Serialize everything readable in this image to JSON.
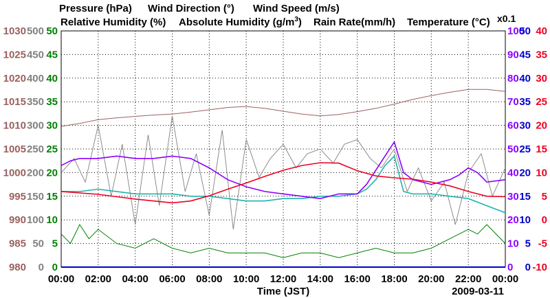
{
  "chart_data": {
    "type": "line",
    "date": "2009-03-11",
    "xlabel": "Time (JST)",
    "x_ticks": [
      "00:00",
      "02:00",
      "04:00",
      "06:00",
      "08:00",
      "10:00",
      "12:00",
      "14:00",
      "16:00",
      "18:00",
      "20:00",
      "22:00",
      "00:00"
    ],
    "x_range_hours": [
      0,
      24
    ],
    "legend": {
      "row1": [
        {
          "key": "pressure",
          "label": "Pressure (hPa)"
        },
        {
          "key": "wind_dir",
          "label": "Wind Direction (°)"
        },
        {
          "key": "wind_speed",
          "label": "Wind Speed (m/s)"
        }
      ],
      "row2": [
        {
          "key": "rel_hum",
          "label": "Relative Humidity (%)"
        },
        {
          "key": "abs_hum",
          "label": "Absolute Humidity (g/m"
        },
        {
          "key": "rain",
          "label": "Rain Rate(mm/h)"
        },
        {
          "key": "temp",
          "label": "Temperature (°C)"
        }
      ],
      "abs_hum_unit_tail": ")",
      "abs_hum_superscript": "3",
      "abs_hum_scale_note": "x0.1"
    },
    "colors": {
      "pressure": "#9b6060",
      "wind_dir": "#808080",
      "wind_speed": "#008000",
      "rel_hum": "#8b00ff",
      "abs_hum": "#20b2aa",
      "rain": "#0000cc",
      "temp": "#ee0022"
    },
    "axes": {
      "pressure": {
        "range": [
          980,
          1030
        ],
        "ticks": [
          "1030",
          "1025",
          "1020",
          "1015",
          "1010",
          "1005",
          "1000",
          "995",
          "990",
          "985",
          "980"
        ]
      },
      "wind_dir": {
        "range": [
          0,
          500
        ],
        "ticks": [
          "500",
          "450",
          "400",
          "350",
          "300",
          "250",
          "200",
          "150",
          "100",
          "50",
          "0"
        ]
      },
      "wind_speed": {
        "range": [
          0,
          50
        ],
        "ticks": [
          "50",
          "45",
          "40",
          "35",
          "30",
          "25",
          "20",
          "15",
          "10",
          "5",
          "0"
        ]
      },
      "rel_hum": {
        "range": [
          0,
          100
        ],
        "ticks": [
          "100",
          "90",
          "80",
          "70",
          "60",
          "50",
          "40",
          "30",
          "20",
          "10",
          "0"
        ]
      },
      "rain": {
        "range": [
          0,
          50
        ],
        "ticks": [
          "50",
          "45",
          "40",
          "35",
          "30",
          "25",
          "20",
          "15",
          "10",
          "5",
          "0"
        ]
      },
      "temp": {
        "range": [
          -10,
          40
        ],
        "ticks": [
          "40",
          "35",
          "30",
          "25",
          "20",
          "15",
          "10",
          "5",
          "0",
          "-5",
          "-10"
        ]
      }
    },
    "series": [
      {
        "name": "Pressure (hPa)",
        "key": "pressure",
        "axis": "pressure",
        "x": [
          0,
          1,
          2,
          3,
          4,
          5,
          6,
          7,
          8,
          9,
          10,
          11,
          12,
          13,
          14,
          15,
          16,
          17,
          18,
          19,
          20,
          21,
          22,
          23,
          24
        ],
        "y": [
          1009.8,
          1010.4,
          1011.2,
          1011.6,
          1011.9,
          1012.2,
          1012.4,
          1012.8,
          1013.3,
          1013.8,
          1014.0,
          1013.6,
          1013.0,
          1012.4,
          1012.0,
          1012.3,
          1012.9,
          1013.6,
          1014.5,
          1015.5,
          1016.3,
          1017.0,
          1017.6,
          1017.6,
          1017.2
        ]
      },
      {
        "name": "Relative Humidity (%)",
        "key": "rel_hum",
        "axis": "rel_hum",
        "x": [
          0,
          0.5,
          1,
          2,
          3,
          4,
          5,
          6,
          7,
          8,
          9,
          10,
          11,
          12,
          13,
          14,
          15,
          15.5,
          16,
          16.5,
          17,
          17.5,
          18,
          18.5,
          19,
          20,
          21,
          21.5,
          22,
          22.5,
          23,
          24
        ],
        "y": [
          43,
          45,
          46,
          46,
          47,
          46,
          46,
          47,
          46,
          42,
          37,
          34,
          32,
          31,
          30,
          29,
          31,
          31,
          31,
          35,
          41,
          47,
          53,
          40,
          37,
          35,
          37,
          39,
          42,
          40,
          36,
          37
        ]
      },
      {
        "name": "Absolute Humidity x0.1",
        "key": "abs_hum",
        "axis": "rel_hum",
        "x": [
          0,
          1,
          2,
          3,
          4,
          5,
          6,
          7,
          8,
          9,
          10,
          11,
          12,
          13,
          14,
          15,
          16,
          16.5,
          17,
          17.5,
          18,
          18.5,
          19,
          20,
          21,
          22,
          23,
          24
        ],
        "y": [
          32,
          32,
          33,
          32,
          31,
          31,
          31,
          30,
          30,
          29,
          28,
          28,
          29,
          29,
          30,
          30,
          31,
          33,
          37,
          43,
          47,
          32,
          31,
          31,
          30,
          29,
          26,
          23
        ]
      },
      {
        "name": "Temperature (°C)",
        "key": "temp",
        "axis": "temp",
        "x": [
          0,
          1,
          2,
          3,
          4,
          5,
          6,
          7,
          8,
          9,
          10,
          11,
          12,
          13,
          14,
          15,
          16,
          17,
          18,
          19,
          20,
          21,
          22,
          23,
          24
        ],
        "y": [
          6.0,
          5.7,
          5.4,
          4.9,
          4.4,
          4.0,
          3.6,
          4.0,
          5.1,
          6.5,
          7.8,
          9.2,
          10.5,
          11.5,
          12.1,
          12.0,
          10.4,
          9.3,
          8.9,
          8.6,
          8.0,
          7.2,
          6.0,
          5.0,
          4.9
        ]
      },
      {
        "name": "Wind Direction (°)",
        "key": "wind_dir",
        "axis": "wind_dir",
        "x": [
          0,
          0.7,
          1.3,
          2,
          2.7,
          3.3,
          4,
          4.7,
          5.3,
          6,
          6.7,
          7.3,
          8,
          8.7,
          9.3,
          10,
          10.7,
          11.3,
          12,
          12.7,
          13.3,
          14,
          14.7,
          15.3,
          16,
          16.7,
          17.3,
          18,
          18.7,
          19.3,
          20,
          20.7,
          21.3,
          22,
          22.7,
          23.3,
          24
        ],
        "y": [
          200,
          230,
          180,
          300,
          150,
          260,
          90,
          280,
          130,
          320,
          160,
          240,
          110,
          290,
          80,
          270,
          190,
          230,
          260,
          210,
          240,
          250,
          220,
          260,
          270,
          230,
          210,
          250,
          160,
          210,
          140,
          180,
          90,
          200,
          240,
          150,
          210
        ]
      },
      {
        "name": "Wind Speed (m/s)",
        "key": "wind_speed",
        "axis": "wind_speed",
        "x": [
          0,
          0.5,
          1,
          1.5,
          2,
          3,
          4,
          5,
          6,
          7,
          8,
          9,
          10,
          11,
          12,
          13,
          14,
          15,
          16,
          17,
          18,
          19,
          20,
          21,
          22,
          22.5,
          23,
          24
        ],
        "y": [
          7,
          5,
          9,
          6,
          8,
          5,
          4,
          6,
          4,
          3,
          4,
          3,
          3,
          3,
          2,
          3,
          3,
          2,
          3,
          4,
          3,
          3,
          4,
          6,
          8,
          7,
          9,
          5
        ]
      },
      {
        "name": "Rain Rate (mm/h)",
        "key": "rain",
        "axis": "rain",
        "x": [
          0,
          24
        ],
        "y": [
          0,
          0
        ]
      }
    ]
  }
}
